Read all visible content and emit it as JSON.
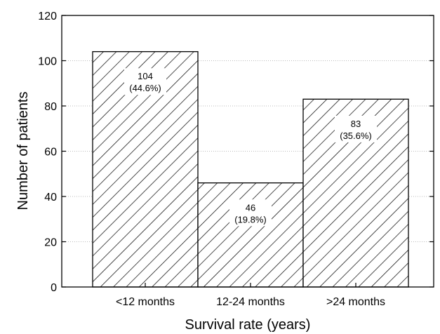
{
  "chart_data": {
    "type": "bar",
    "categories": [
      "<12 months",
      "12-24 months",
      ">24 months"
    ],
    "values": [
      104,
      46,
      83
    ],
    "data_labels": [
      [
        "104",
        "(44.6%)"
      ],
      [
        "46",
        "(19.8%)"
      ],
      [
        "83",
        "(35.6%)"
      ]
    ],
    "xlabel": "Survival rate (years)",
    "ylabel": "Number of patients",
    "ylim": [
      0,
      120
    ],
    "yticks": [
      0,
      20,
      40,
      60,
      80,
      100,
      120
    ],
    "grid": "horizontal dotted",
    "bar_fill": "diagonal-hatch",
    "colors": {
      "bar_stroke": "#000000",
      "hatch": "#000000",
      "grid": "#bbbbbb",
      "background": "#ffffff"
    }
  }
}
